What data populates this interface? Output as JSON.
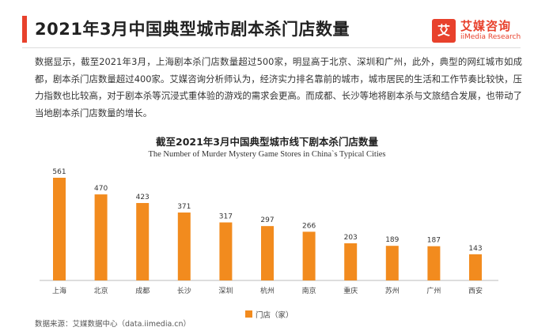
{
  "header": {
    "title": "2021年3月中国典型城市剧本杀门店数量",
    "logo_mark": "艾",
    "logo_cn": "艾媒咨询",
    "logo_en": "iiMedia Research"
  },
  "description": "数据显示，截至2021年3月，上海剧本杀门店数量超过500家，明显高于北京、深圳和广州，此外，典型的网红城市如成都，剧本杀门店数量超过400家。艾媒咨询分析师认为，经济实力排名靠前的城市，城市居民的生活和工作节奏比较快，压力指数也比较高，对于剧本杀等沉浸式重体验的游戏的需求会更高。而成都、长沙等地将剧本杀与文旅结合发展，也带动了当地剧本杀门店数量的增长。",
  "source": "数据来源：艾媒数据中心（data.iimedia.cn）",
  "chart_data": {
    "type": "bar",
    "title": "截至2021年3月中国典型城市线下剧本杀门店数量",
    "subtitle": "The Number of Murder Mystery Game Stores in China`s Typical Cities",
    "categories": [
      "上海",
      "北京",
      "成都",
      "长沙",
      "深圳",
      "杭州",
      "南京",
      "重庆",
      "苏州",
      "广州",
      "西安"
    ],
    "series": [
      {
        "name": "门店（家）",
        "values": [
          561,
          470,
          423,
          371,
          317,
          297,
          266,
          203,
          189,
          187,
          143
        ],
        "color": "#F28B1E"
      }
    ],
    "ylim": [
      0,
      561
    ],
    "grid": false,
    "legend": "bottom-center"
  }
}
